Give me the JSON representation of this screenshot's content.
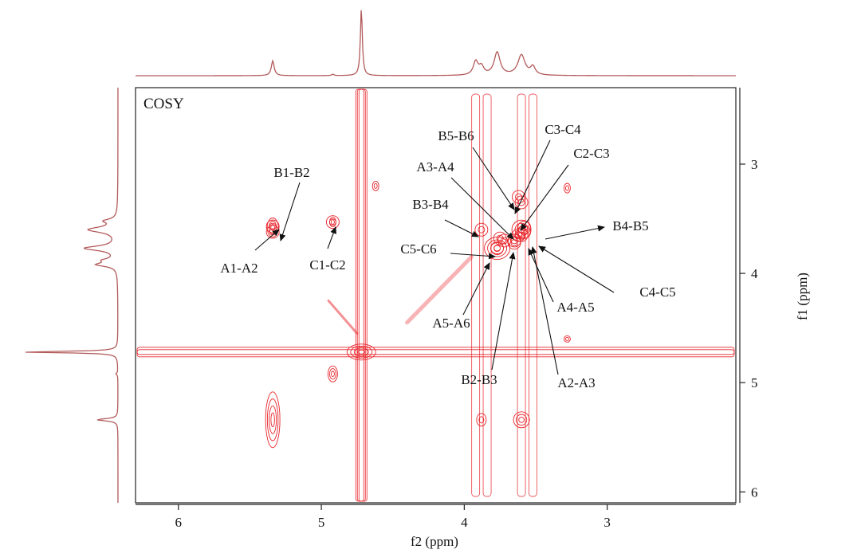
{
  "chart_data": {
    "type": "2d-nmr-contour",
    "panel_label": "COSY",
    "xlabel": "f2 (ppm)",
    "ylabel": "f1 (ppm)",
    "x_range": [
      6.3,
      2.1
    ],
    "y_range": [
      2.3,
      6.1
    ],
    "x_ticks": [
      6,
      5,
      4,
      3
    ],
    "y_ticks": [
      3,
      4,
      5,
      6
    ],
    "diagonal_peaks_ppm": [
      5.34,
      4.92,
      4.72,
      3.92,
      3.84,
      3.77,
      3.7,
      3.6,
      3.52,
      3.35
    ],
    "cross_peaks": [
      {
        "label": "B1-B2",
        "f2": 5.34,
        "f1": 3.57
      },
      {
        "label": "A1-A2",
        "f2": 5.34,
        "f1": 3.62
      },
      {
        "label": "C1-C2",
        "f2": 4.92,
        "f1": 3.53
      },
      {
        "label": "B5-B6",
        "f2": 3.6,
        "f1": 3.35
      },
      {
        "label": "C3-C4",
        "f2": 3.62,
        "f1": 3.3
      },
      {
        "label": "C2-C3",
        "f2": 3.58,
        "f1": 3.58
      },
      {
        "label": "A3-A4",
        "f2": 3.62,
        "f1": 3.65
      },
      {
        "label": "B3-B4",
        "f2": 3.88,
        "f1": 3.6
      },
      {
        "label": "B4-B5",
        "f2": 3.58,
        "f1": 3.62
      },
      {
        "label": "C5-C6",
        "f2": 3.77,
        "f1": 3.77
      },
      {
        "label": "C4-C5",
        "f2": 3.6,
        "f1": 3.65
      },
      {
        "label": "A5-A6",
        "f2": 3.75,
        "f1": 3.68
      },
      {
        "label": "A4-A5",
        "f2": 3.65,
        "f1": 3.72
      },
      {
        "label": "B2-B3",
        "f2": 3.72,
        "f1": 3.7
      },
      {
        "label": "A2-A3",
        "f2": 3.65,
        "f1": 3.7
      }
    ],
    "colors": {
      "contour": "#e8252b",
      "projection": "#b35a5a",
      "axis": "#222222"
    }
  }
}
